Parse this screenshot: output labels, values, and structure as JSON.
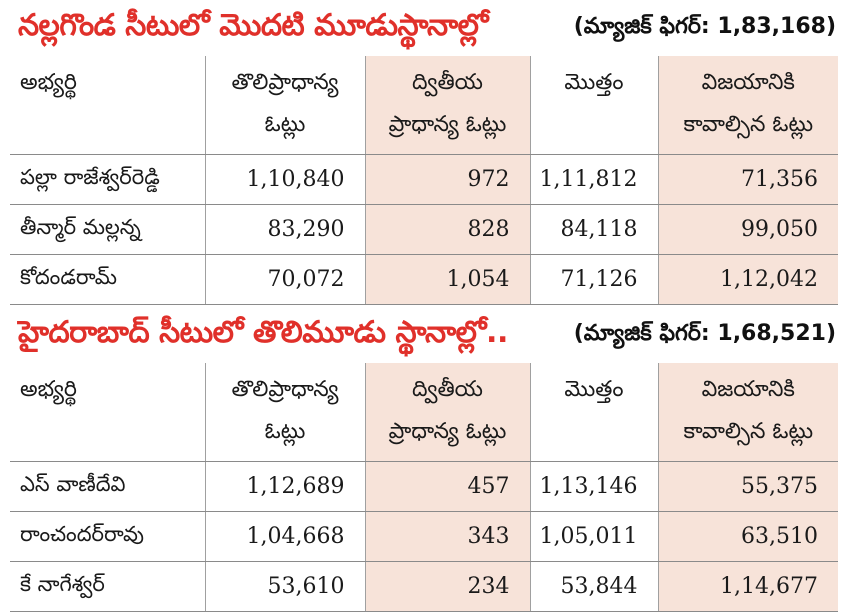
{
  "headers": [
    "అభ్యర్థి",
    "తొలిప్రాధాన్య ఓట్లు",
    "ద్వితీయ ప్రాధాన్య ఓట్లు",
    "మొత్తం",
    "విజయానికి కావాల్సిన ఓట్లు"
  ],
  "header_lines": [
    [
      "అభ్యర్థి",
      ""
    ],
    [
      "తొలిప్రాధాన్య",
      "ఓట్లు"
    ],
    [
      "ద్వితీయ",
      "ప్రాధాన్య ఓట్లు"
    ],
    [
      "మొత్తం",
      ""
    ],
    [
      "విజయానికి",
      "కావాల్సిన ఓట్లు"
    ]
  ],
  "sections": [
    {
      "title": "నల్లగొండ సీటులో మొదటి మూడుస్థానాల్లో",
      "magic_figure": "(మ్యాజిక్ ఫిగర్: 1,83,168)",
      "rows": [
        [
          "పల్లా రాజేశ్వర్‌రెడ్డి",
          "1,10,840",
          "972",
          "1,11,812",
          "71,356"
        ],
        [
          "తీన్మార్ మల్లన్న",
          "83,290",
          "828",
          "84,118",
          "99,050"
        ],
        [
          "కోదండరామ్",
          "70,072",
          "1,054",
          "71,126",
          "1,12,042"
        ]
      ]
    },
    {
      "title": "హైదరాబాద్ సీటులో తొలిమూడు స్థానాల్లో..",
      "magic_figure": "(మ్యాజిక్ ఫిగర్: 1,68,521)",
      "rows": [
        [
          "ఎస్ వాణీదేవి",
          "1,12,689",
          "457",
          "1,13,146",
          "55,375"
        ],
        [
          "రాంచందర్‌రావు",
          "1,04,668",
          "343",
          "1,05,011",
          "63,510"
        ],
        [
          "కే నాగేశ్వర్",
          "53,610",
          "234",
          "53,844",
          "1,14,677"
        ]
      ]
    }
  ]
}
